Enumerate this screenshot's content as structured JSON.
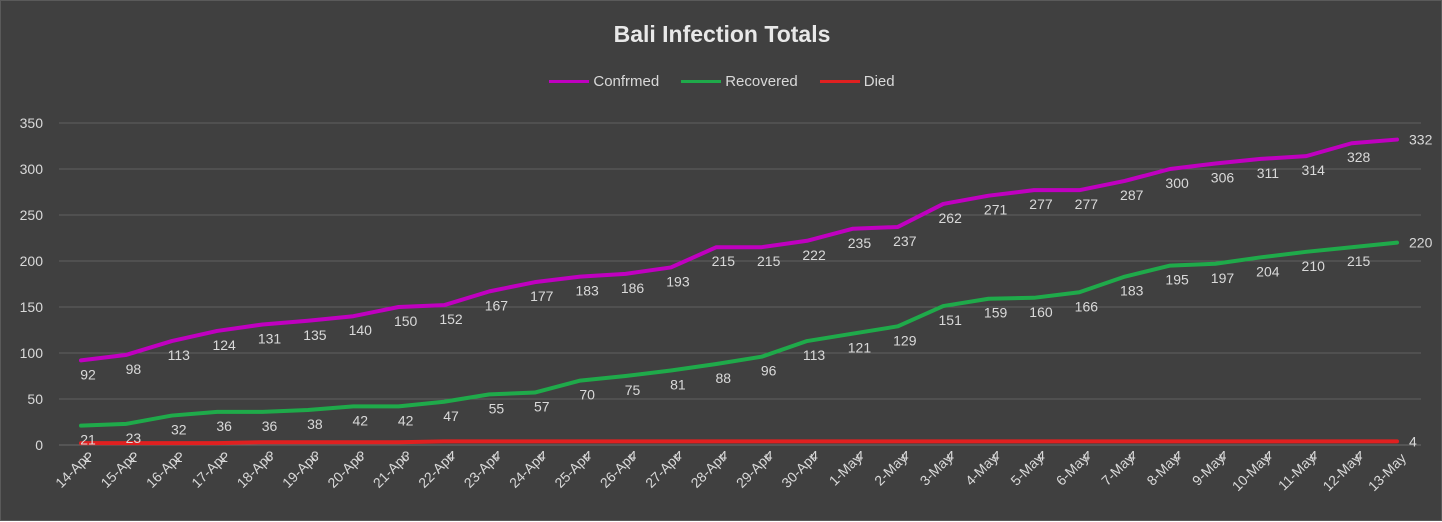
{
  "chart_data": {
    "type": "line",
    "title": "Bali Infection Totals",
    "xlabel": "",
    "ylabel": "",
    "ylim": [
      0,
      350
    ],
    "yticks": [
      0,
      50,
      100,
      150,
      200,
      250,
      300,
      350
    ],
    "grid": true,
    "legend_position": "top",
    "categories": [
      "14-Apr",
      "15-Apr",
      "16-Apr",
      "17-Apr",
      "18-Apr",
      "19-Apr",
      "20-Apr",
      "21-Apr",
      "22-Apr",
      "23-Apr",
      "24-Apr",
      "25-Apr",
      "26-Apr",
      "27-Apr",
      "28-Apr",
      "29-Apr",
      "30-Apr",
      "1-May",
      "2-May",
      "3-May",
      "4-May",
      "5-May",
      "6-May",
      "7-May",
      "8-May",
      "9-May",
      "10-May",
      "11-May",
      "12-May",
      "13-May"
    ],
    "series": [
      {
        "name": "Confrmed",
        "color": "#c000c0",
        "values": [
          92,
          98,
          113,
          124,
          131,
          135,
          140,
          150,
          152,
          167,
          177,
          183,
          186,
          193,
          215,
          215,
          222,
          235,
          237,
          262,
          271,
          277,
          277,
          287,
          300,
          306,
          311,
          314,
          328,
          332
        ]
      },
      {
        "name": "Recovered",
        "color": "#1faa4a",
        "values": [
          21,
          23,
          32,
          36,
          36,
          38,
          42,
          42,
          47,
          55,
          57,
          70,
          75,
          81,
          88,
          96,
          113,
          121,
          129,
          151,
          159,
          160,
          166,
          183,
          195,
          197,
          204,
          210,
          215,
          220
        ]
      },
      {
        "name": "Died",
        "color": "#e02020",
        "values": [
          2,
          2,
          2,
          2,
          3,
          3,
          3,
          3,
          4,
          4,
          4,
          4,
          4,
          4,
          4,
          4,
          4,
          4,
          4,
          4,
          4,
          4,
          4,
          4,
          4,
          4,
          4,
          4,
          4,
          4
        ]
      }
    ]
  },
  "colors": {
    "background": "#404040",
    "gridline": "#5f5f5f",
    "text": "#d9d9d9"
  }
}
